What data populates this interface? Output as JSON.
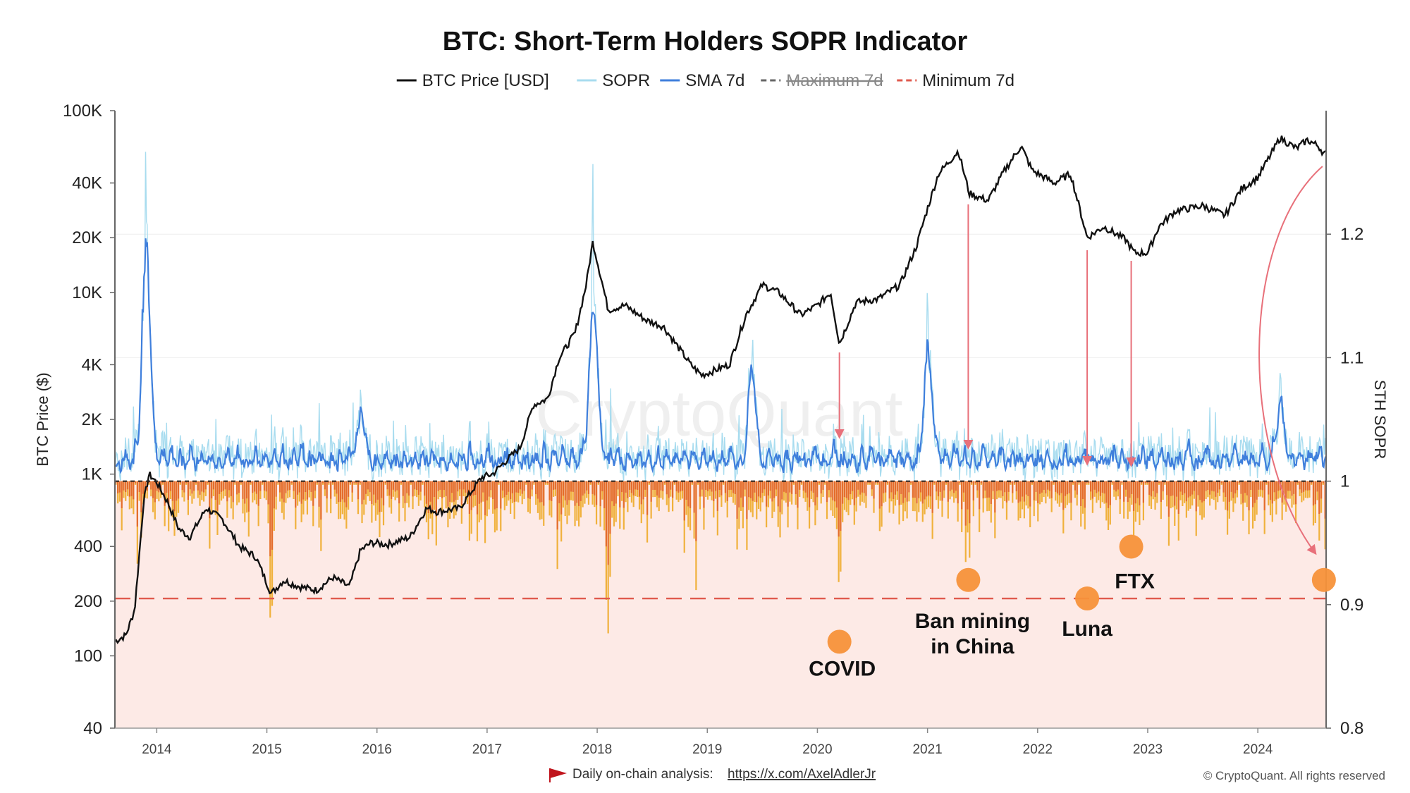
{
  "chart_data": {
    "type": "line",
    "title": "BTC: Short-Term Holders SOPR Indicator",
    "legend": [
      {
        "name": "BTC Price [USD]",
        "color": "#111111",
        "style": "solid",
        "strikethrough": false
      },
      {
        "name": "SOPR",
        "color": "#a8dcef",
        "style": "solid",
        "strikethrough": false
      },
      {
        "name": "SMA 7d",
        "color": "#3f7fdc",
        "style": "solid",
        "strikethrough": false
      },
      {
        "name": "Maximum 7d",
        "color": "#666666",
        "style": "dashed",
        "strikethrough": true
      },
      {
        "name": "Minimum 7d",
        "color": "#e05a4e",
        "style": "dashed",
        "strikethrough": false
      }
    ],
    "legend_position": "top-center",
    "left_axis": {
      "label": "BTC Price ($)",
      "scale": "log",
      "range": [
        40,
        100000
      ],
      "ticks": [
        {
          "value": 40,
          "label": "40"
        },
        {
          "value": 100,
          "label": "100"
        },
        {
          "value": 200,
          "label": "200"
        },
        {
          "value": 400,
          "label": "400"
        },
        {
          "value": 1000,
          "label": "1K"
        },
        {
          "value": 2000,
          "label": "2K"
        },
        {
          "value": 4000,
          "label": "4K"
        },
        {
          "value": 10000,
          "label": "10K"
        },
        {
          "value": 20000,
          "label": "20K"
        },
        {
          "value": 40000,
          "label": "40K"
        },
        {
          "value": 100000,
          "label": "100K"
        }
      ]
    },
    "right_axis": {
      "label": "STH SOPR",
      "scale": "linear",
      "range": [
        0.8,
        1.3
      ],
      "ticks": [
        {
          "value": 0.8,
          "label": "0.8"
        },
        {
          "value": 0.9,
          "label": "0.9"
        },
        {
          "value": 1.0,
          "label": "1"
        },
        {
          "value": 1.1,
          "label": "1.1"
        },
        {
          "value": 1.2,
          "label": "1.2"
        }
      ]
    },
    "x_axis": {
      "range": [
        2013.62,
        2024.62
      ],
      "ticks": [
        "2014",
        "2015",
        "2016",
        "2017",
        "2018",
        "2019",
        "2020",
        "2021",
        "2022",
        "2023",
        "2024"
      ]
    },
    "reference_lines": {
      "sopr_baseline": 1.0,
      "minimum_7d": 0.905
    },
    "btc_price": [
      [
        2013.62,
        120
      ],
      [
        2013.72,
        130
      ],
      [
        2013.8,
        180
      ],
      [
        2013.88,
        700
      ],
      [
        2013.93,
        1000
      ],
      [
        2014.0,
        900
      ],
      [
        2014.1,
        700
      ],
      [
        2014.2,
        500
      ],
      [
        2014.3,
        450
      ],
      [
        2014.45,
        650
      ],
      [
        2014.6,
        560
      ],
      [
        2014.75,
        400
      ],
      [
        2014.9,
        350
      ],
      [
        2015.04,
        220
      ],
      [
        2015.15,
        260
      ],
      [
        2015.3,
        240
      ],
      [
        2015.45,
        230
      ],
      [
        2015.6,
        270
      ],
      [
        2015.75,
        240
      ],
      [
        2015.85,
        380
      ],
      [
        2015.95,
        420
      ],
      [
        2016.1,
        410
      ],
      [
        2016.3,
        450
      ],
      [
        2016.45,
        650
      ],
      [
        2016.55,
        620
      ],
      [
        2016.75,
        650
      ],
      [
        2016.95,
        960
      ],
      [
        2017.05,
        1000
      ],
      [
        2017.15,
        1150
      ],
      [
        2017.3,
        1400
      ],
      [
        2017.42,
        2400
      ],
      [
        2017.55,
        2600
      ],
      [
        2017.65,
        4300
      ],
      [
        2017.8,
        6000
      ],
      [
        2017.9,
        11000
      ],
      [
        2017.96,
        19000
      ],
      [
        2018.05,
        11000
      ],
      [
        2018.1,
        8000
      ],
      [
        2018.25,
        8500
      ],
      [
        2018.45,
        7000
      ],
      [
        2018.6,
        6500
      ],
      [
        2018.85,
        4000
      ],
      [
        2018.95,
        3500
      ],
      [
        2019.2,
        4000
      ],
      [
        2019.35,
        7500
      ],
      [
        2019.5,
        11000
      ],
      [
        2019.65,
        10000
      ],
      [
        2019.85,
        7500
      ],
      [
        2020.0,
        8500
      ],
      [
        2020.12,
        10000
      ],
      [
        2020.2,
        5200
      ],
      [
        2020.35,
        8800
      ],
      [
        2020.55,
        9200
      ],
      [
        2020.75,
        11000
      ],
      [
        2020.9,
        18000
      ],
      [
        2021.0,
        29000
      ],
      [
        2021.1,
        45000
      ],
      [
        2021.28,
        60000
      ],
      [
        2021.38,
        35000
      ],
      [
        2021.55,
        32000
      ],
      [
        2021.7,
        47000
      ],
      [
        2021.85,
        64000
      ],
      [
        2021.95,
        47000
      ],
      [
        2022.15,
        40000
      ],
      [
        2022.3,
        45000
      ],
      [
        2022.45,
        20000
      ],
      [
        2022.6,
        23000
      ],
      [
        2022.8,
        19500
      ],
      [
        2022.88,
        16500
      ],
      [
        2023.0,
        16500
      ],
      [
        2023.1,
        23000
      ],
      [
        2023.25,
        28000
      ],
      [
        2023.5,
        30000
      ],
      [
        2023.7,
        26500
      ],
      [
        2023.85,
        37000
      ],
      [
        2024.0,
        43000
      ],
      [
        2024.15,
        62000
      ],
      [
        2024.2,
        71000
      ],
      [
        2024.35,
        62000
      ],
      [
        2024.45,
        69000
      ],
      [
        2024.55,
        64000
      ],
      [
        2024.6,
        58000
      ]
    ],
    "sopr_sma7d_peaks": [
      [
        2013.9,
        1.2
      ],
      [
        2015.85,
        1.05
      ],
      [
        2017.96,
        1.14
      ],
      [
        2019.4,
        1.08
      ],
      [
        2021.0,
        1.1
      ],
      [
        2024.2,
        1.05
      ]
    ],
    "sopr_daily_peaks": [
      [
        2013.9,
        1.27
      ],
      [
        2017.96,
        1.26
      ],
      [
        2021.0,
        1.16
      ],
      [
        2024.2,
        1.09
      ]
    ],
    "sopr_lows": [
      [
        2015.04,
        0.87
      ],
      [
        2018.1,
        0.86
      ],
      [
        2018.9,
        0.9
      ],
      [
        2020.2,
        0.9
      ],
      [
        2021.38,
        0.93
      ],
      [
        2022.45,
        0.92
      ],
      [
        2022.88,
        0.96
      ],
      [
        2024.6,
        0.93
      ]
    ],
    "annotations": [
      {
        "label": "COVID",
        "x": 2020.2,
        "marker_sopr": 0.87
      },
      {
        "label": "Ban mining in China",
        "x": 2021.37,
        "marker_sopr": 0.92
      },
      {
        "label": "Luna",
        "x": 2022.45,
        "marker_sopr": 0.905
      },
      {
        "label": "FTX",
        "x": 2022.85,
        "marker_sopr": 0.947
      },
      {
        "label": "",
        "x": 2024.6,
        "marker_sopr": 0.92
      }
    ],
    "watermark": "CryptoQuant"
  },
  "footer": {
    "text": "Daily on-chain analysis:",
    "link": "https://x.com/AxelAdlerJr",
    "copyright": "© CryptoQuant. All rights reserved"
  }
}
